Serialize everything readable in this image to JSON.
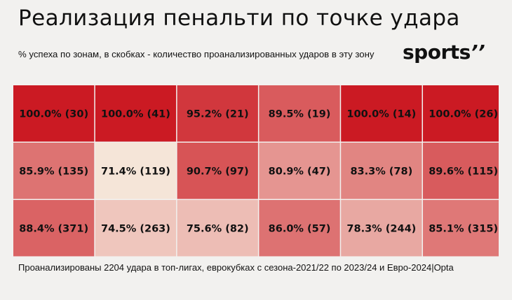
{
  "header": {
    "title": "Реализация пенальти по точке удара",
    "subtitle": "% успеха по зонам, в скобках - количество проанализированных ударов в эту зону",
    "logo_text": "sports",
    "logo_mark": "’’"
  },
  "chart_data": {
    "type": "heatmap",
    "rows": 3,
    "cols": 6,
    "cells": [
      [
        {
          "pct": 100.0,
          "shots": 30,
          "label": "100.0% (30)"
        },
        {
          "pct": 100.0,
          "shots": 41,
          "label": "100.0% (41)"
        },
        {
          "pct": 95.2,
          "shots": 21,
          "label": "95.2% (21)"
        },
        {
          "pct": 89.5,
          "shots": 19,
          "label": "89.5% (19)"
        },
        {
          "pct": 100.0,
          "shots": 14,
          "label": "100.0% (14)"
        },
        {
          "pct": 100.0,
          "shots": 26,
          "label": "100.0% (26)"
        }
      ],
      [
        {
          "pct": 85.9,
          "shots": 135,
          "label": "85.9% (135)"
        },
        {
          "pct": 71.4,
          "shots": 119,
          "label": "71.4% (119)"
        },
        {
          "pct": 90.7,
          "shots": 97,
          "label": "90.7% (97)"
        },
        {
          "pct": 80.9,
          "shots": 47,
          "label": "80.9% (47)"
        },
        {
          "pct": 83.3,
          "shots": 78,
          "label": "83.3% (78)"
        },
        {
          "pct": 89.6,
          "shots": 115,
          "label": "89.6% (115)"
        }
      ],
      [
        {
          "pct": 88.4,
          "shots": 371,
          "label": "88.4% (371)"
        },
        {
          "pct": 74.5,
          "shots": 263,
          "label": "74.5% (263)"
        },
        {
          "pct": 75.6,
          "shots": 82,
          "label": "75.6% (82)"
        },
        {
          "pct": 86.0,
          "shots": 57,
          "label": "86.0% (57)"
        },
        {
          "pct": 78.3,
          "shots": 244,
          "label": "78.3% (244)"
        },
        {
          "pct": 85.1,
          "shots": 315,
          "label": "85.1% (315)"
        }
      ]
    ],
    "color_scale": {
      "low": "#f5e5d8",
      "high": "#cb1a23",
      "min": 71.4,
      "max": 100.0
    }
  },
  "footnote": "Проанализированы 2204 удара в топ-лигах, еврокубках с сезона-2021/22 по 2023/24 и Евро-2024|Opta"
}
